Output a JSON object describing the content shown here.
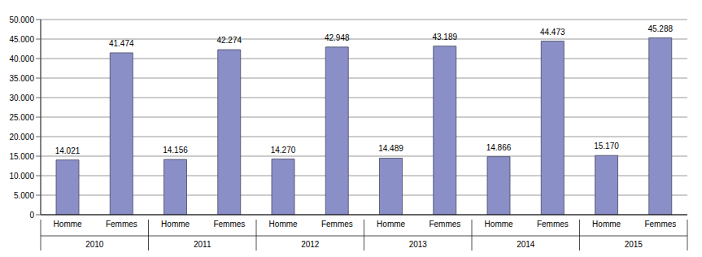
{
  "chart_data": {
    "type": "bar",
    "categories": [
      "Homme",
      "Femmes",
      "Homme",
      "Femmes",
      "Homme",
      "Femmes",
      "Homme",
      "Femmes",
      "Homme",
      "Femmes",
      "Homme",
      "Femmes"
    ],
    "groups": [
      "2010",
      "2011",
      "2012",
      "2013",
      "2014",
      "2015"
    ],
    "values": [
      14021,
      41474,
      14156,
      42274,
      14270,
      42948,
      14489,
      43189,
      14866,
      44473,
      15170,
      45288
    ],
    "value_labels": [
      "14.021",
      "41.474",
      "14.156",
      "42.274",
      "14.270",
      "42.948",
      "14.489",
      "43.189",
      "14.866",
      "44.473",
      "15.170",
      "45.288"
    ],
    "data_labels": true,
    "color": "#8b8fc8",
    "ylim": [
      0,
      50000
    ],
    "yticks": [
      0,
      {
        "value": 5000,
        "label": "5.000"
      },
      {
        "value": 10000,
        "label": "10.000"
      },
      {
        "value": 15000,
        "label": "15.000"
      },
      {
        "value": 20000,
        "label": "20.000"
      },
      {
        "value": 25000,
        "label": "25.000"
      },
      {
        "value": 30000,
        "label": "30.000"
      },
      {
        "value": 35000,
        "label": "35.000"
      },
      {
        "value": 40000,
        "label": "40.000"
      },
      {
        "value": 45000,
        "label": "45.000"
      },
      {
        "value": 50000,
        "label": "50.000"
      }
    ],
    "grid": true
  }
}
